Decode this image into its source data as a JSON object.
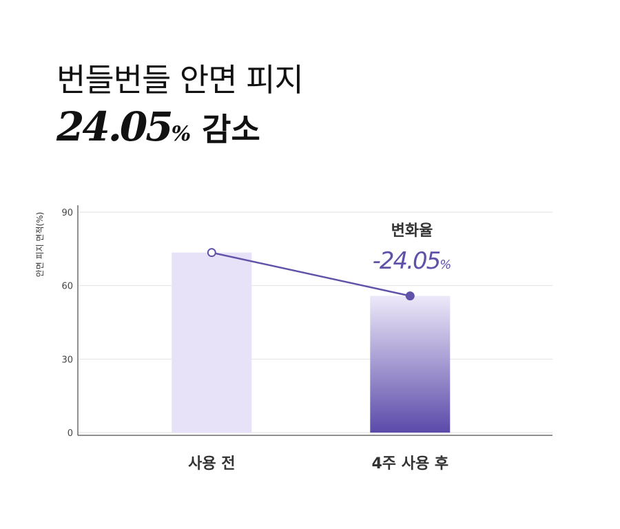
{
  "chart_data": {
    "type": "bar",
    "title": "번들번들 안면 피지",
    "subtitle_value": "24.05",
    "subtitle_unit": "%",
    "subtitle_rest": "감소",
    "y_label": "안면 피지 면적(%)",
    "categories": [
      "사용 전",
      "4주 사용 후"
    ],
    "values": [
      73.5,
      55.8
    ],
    "colors": [
      "#e7e2f7",
      "#5b4aa9"
    ],
    "line_color": "#5f52a8",
    "ylim": [
      0,
      90
    ],
    "yticks": [
      0,
      30,
      60,
      90
    ],
    "grid": true,
    "annotation_label": "변화율",
    "annotation_value": "-24.05",
    "annotation_unit": "%"
  }
}
